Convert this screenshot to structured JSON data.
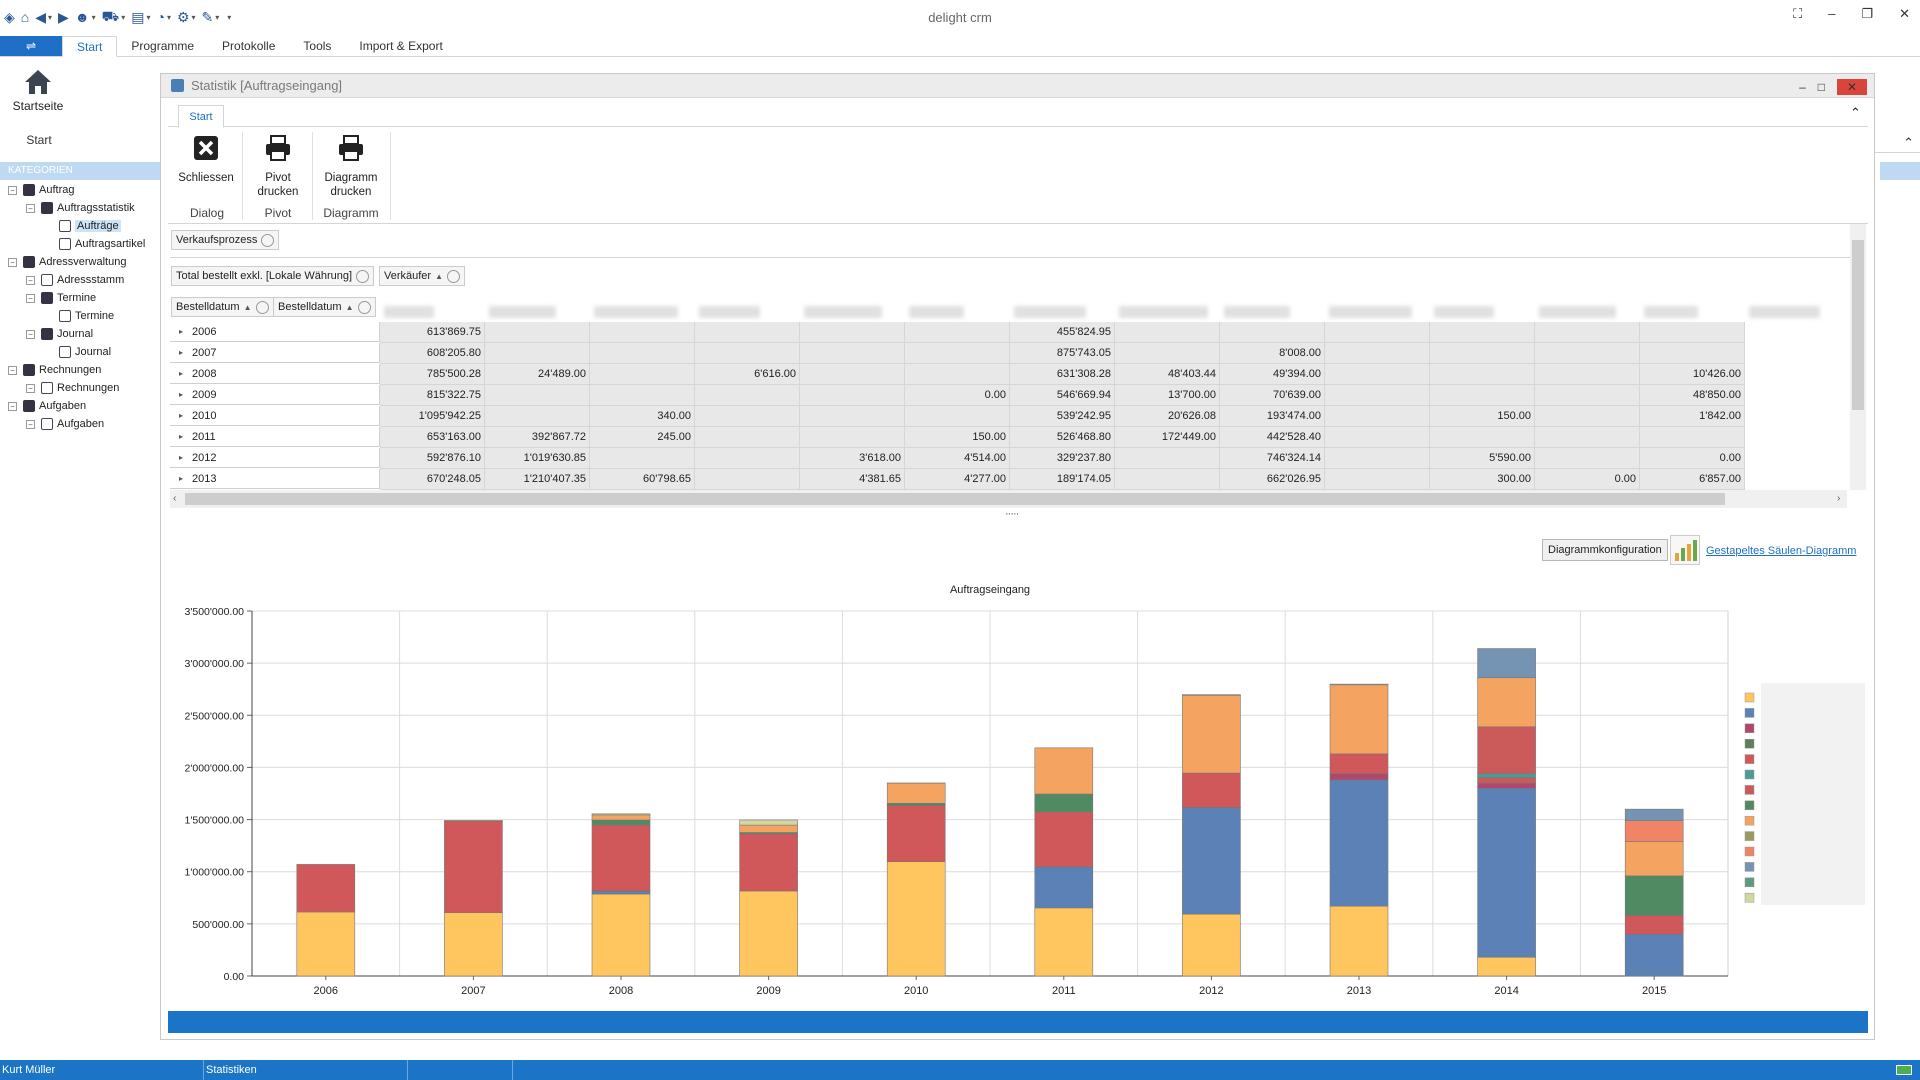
{
  "app": {
    "title": "delight crm"
  },
  "ribbon": {
    "tabs": [
      "Start",
      "Programme",
      "Protokolle",
      "Tools",
      "Import & Export"
    ],
    "start_button": "Startseite",
    "group": "Start"
  },
  "sidebar": {
    "header": "KATEGORIEN",
    "items": [
      {
        "label": "Auftrag",
        "level": 0
      },
      {
        "label": "Auftragsstatistik",
        "level": 1
      },
      {
        "label": "Aufträge",
        "level": 2
      },
      {
        "label": "Auftragsartikel",
        "level": 2
      },
      {
        "label": "Adressverwaltung",
        "level": 0
      },
      {
        "label": "Adressstamm",
        "level": 1
      },
      {
        "label": "Termine",
        "level": 1
      },
      {
        "label": "Termine",
        "level": 2
      },
      {
        "label": "Journal",
        "level": 1
      },
      {
        "label": "Journal",
        "level": 2
      },
      {
        "label": "Rechnungen",
        "level": 0
      },
      {
        "label": "Rechnungen",
        "level": 1
      },
      {
        "label": "Aufgaben",
        "level": 0
      },
      {
        "label": "Aufgaben",
        "level": 1
      }
    ]
  },
  "window": {
    "title": "Statistik [Auftragseingang]",
    "tab": "Start",
    "buttons": {
      "close_l1": "Schliessen",
      "pivot_l1": "Pivot",
      "pivot_l2": "drucken",
      "diag_l1": "Diagramm",
      "diag_l2": "drucken"
    },
    "groups": {
      "dialog": "Dialog",
      "pivot": "Pivot",
      "diagramm": "Diagramm"
    }
  },
  "pivot": {
    "filter_field": "Verkaufsprozess",
    "data_field": "Total bestellt exkl. [Lokale Währung]",
    "column_field": "Verkäufer",
    "row_field_1": "Bestelldatum",
    "row_field_2": "Bestelldatum",
    "rows": [
      {
        "year": "2006",
        "cells": [
          "613'869.75",
          "",
          "",
          "",
          "",
          "",
          "455'824.95",
          "",
          "",
          "",
          "",
          "",
          ""
        ]
      },
      {
        "year": "2007",
        "cells": [
          "608'205.80",
          "",
          "",
          "",
          "",
          "",
          "875'743.05",
          "",
          "8'008.00",
          "",
          "",
          "",
          ""
        ]
      },
      {
        "year": "2008",
        "cells": [
          "785'500.28",
          "24'489.00",
          "",
          "6'616.00",
          "",
          "",
          "631'308.28",
          "48'403.44",
          "49'394.00",
          "",
          "",
          "",
          "10'426.00"
        ]
      },
      {
        "year": "2009",
        "cells": [
          "815'322.75",
          "",
          "",
          "",
          "",
          "0.00",
          "546'669.94",
          "13'700.00",
          "70'639.00",
          "",
          "",
          "",
          "48'850.00"
        ]
      },
      {
        "year": "2010",
        "cells": [
          "1'095'942.25",
          "",
          "340.00",
          "",
          "",
          "",
          "539'242.95",
          "20'626.08",
          "193'474.00",
          "",
          "150.00",
          "",
          "1'842.00"
        ]
      },
      {
        "year": "2011",
        "cells": [
          "653'163.00",
          "392'867.72",
          "245.00",
          "",
          "",
          "150.00",
          "526'468.80",
          "172'449.00",
          "442'528.40",
          "",
          "",
          "",
          ""
        ]
      },
      {
        "year": "2012",
        "cells": [
          "592'876.10",
          "1'019'630.85",
          "",
          "",
          "3'618.00",
          "4'514.00",
          "329'237.80",
          "",
          "746'324.14",
          "",
          "5'590.00",
          "",
          "0.00"
        ]
      },
      {
        "year": "2013",
        "cells": [
          "670'248.05",
          "1'210'407.35",
          "60'798.65",
          "",
          "4'381.65",
          "4'277.00",
          "189'174.05",
          "",
          "662'026.95",
          "",
          "300.00",
          "0.00",
          "6'857.00"
        ]
      }
    ]
  },
  "chart_toolbar": {
    "config_button": "Diagrammkonfiguration",
    "chart_type_link": "Gestapeltes Säulen-Diagramm"
  },
  "chart_data": {
    "type": "bar",
    "stacked": true,
    "title": "Auftragseingang",
    "categories": [
      "2006",
      "2007",
      "2008",
      "2009",
      "2010",
      "2011",
      "2012",
      "2013",
      "2014",
      "2015"
    ],
    "y_ticks": [
      "0.00",
      "500'000.00",
      "1'000'000.00",
      "1'500'000.00",
      "2'000'000.00",
      "2'500'000.00",
      "3'000'000.00",
      "3'500'000.00"
    ],
    "ylim": [
      0,
      3500000
    ],
    "grid": true,
    "legend_position": "right",
    "series": [
      {
        "color": "#ffc55f",
        "values": [
          614000,
          608000,
          786000,
          815000,
          1096000,
          653000,
          593000,
          670000,
          180000,
          0
        ]
      },
      {
        "color": "#5b81b7",
        "values": [
          0,
          0,
          24000,
          0,
          0,
          393000,
          1020000,
          1210000,
          1620000,
          400000
        ]
      },
      {
        "color": "#b0486e",
        "values": [
          0,
          0,
          7000,
          0,
          0,
          0,
          4000,
          61000,
          50000,
          0
        ]
      },
      {
        "color": "#5f7e5f",
        "values": [
          0,
          0,
          0,
          0,
          0,
          0,
          0,
          0,
          0,
          0
        ]
      },
      {
        "color": "#d0575a",
        "values": [
          456000,
          876000,
          631000,
          547000,
          539000,
          527000,
          329000,
          189000,
          50000,
          180000
        ]
      },
      {
        "color": "#4e9a96",
        "values": [
          0,
          0,
          0,
          0,
          0,
          0,
          0,
          0,
          40000,
          0
        ]
      },
      {
        "color": "#cb5a5b",
        "values": [
          0,
          0,
          0,
          0,
          0,
          0,
          0,
          0,
          450000,
          0
        ]
      },
      {
        "color": "#4f8a63",
        "values": [
          0,
          0,
          48000,
          14000,
          21000,
          172000,
          0,
          0,
          0,
          380000
        ]
      },
      {
        "color": "#f4a460",
        "values": [
          0,
          8000,
          49000,
          71000,
          193000,
          443000,
          746000,
          662000,
          470000,
          330000
        ]
      },
      {
        "color": "#9a9a60",
        "values": [
          0,
          0,
          0,
          0,
          0,
          0,
          0,
          0,
          0,
          0
        ]
      },
      {
        "color": "#f08466",
        "values": [
          0,
          0,
          0,
          0,
          0,
          0,
          6000,
          0,
          0,
          200000
        ]
      },
      {
        "color": "#7594b3",
        "values": [
          0,
          0,
          0,
          0,
          0,
          0,
          0,
          0,
          280000,
          110000
        ]
      },
      {
        "color": "#5c9b82",
        "values": [
          0,
          0,
          0,
          0,
          0,
          0,
          0,
          0,
          0,
          0
        ]
      },
      {
        "color": "#d0d8a0",
        "values": [
          0,
          0,
          10000,
          49000,
          2000,
          0,
          0,
          7000,
          0,
          0
        ]
      }
    ]
  },
  "status": {
    "user": "Kurt Müller",
    "module": "Statistiken"
  }
}
